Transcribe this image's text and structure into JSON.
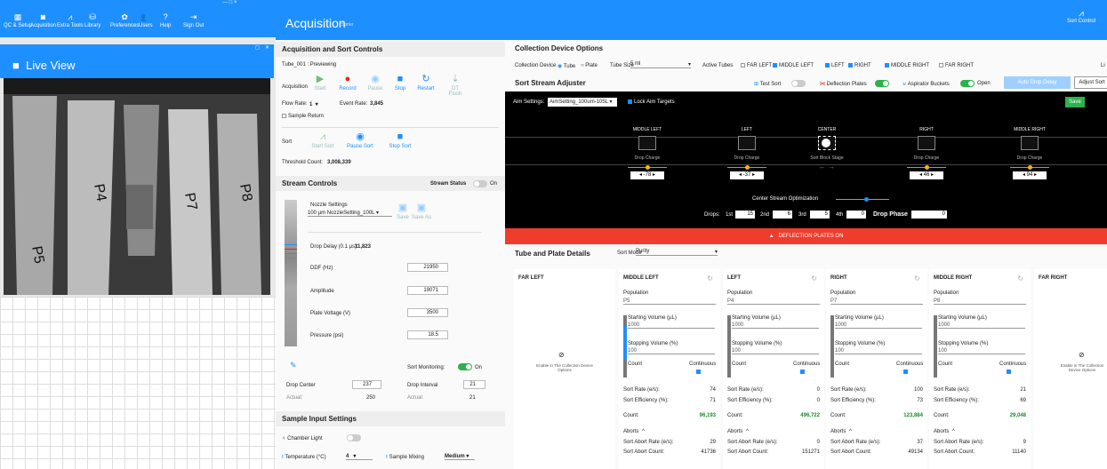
{
  "nav": {
    "items": [
      {
        "label": "QC & Setup",
        "icon": "qc-setup-icon",
        "glyph": "▦"
      },
      {
        "label": "Acquisition",
        "icon": "acquisition-icon",
        "glyph": "◙"
      },
      {
        "label": "Extra Tools",
        "icon": "extra-tools-icon",
        "glyph": "⩘"
      },
      {
        "label": "Library",
        "icon": "library-icon",
        "glyph": "⛁"
      },
      {
        "label": "Preferences",
        "icon": "preferences-icon",
        "glyph": "✿"
      },
      {
        "label": "Users",
        "icon": "users-icon",
        "glyph": "👥"
      },
      {
        "label": "Help",
        "icon": "help-icon",
        "glyph": "?"
      },
      {
        "label": "Sign Out",
        "icon": "sign-out-icon",
        "glyph": "⇥"
      }
    ],
    "window_controls": "—   □   ×"
  },
  "live_view": {
    "title": "Live View",
    "labels": [
      "P5",
      "P4",
      "P7",
      "P8"
    ]
  },
  "header": {
    "title": "Acquisition",
    "subtitle": "Sorter",
    "sort_control": "Sort Control"
  },
  "acq_sort": {
    "section": "Acquisition and Sort Controls",
    "tube_status": "Tube_001 : Previewing",
    "acquisition_label": "Acquisition",
    "buttons": [
      "Start",
      "Record",
      "Pause",
      "Stop",
      "Restart",
      "DT Flush"
    ],
    "flow_rate_label": "Flow Rate:",
    "flow_rate": "1",
    "event_rate_label": "Event Rate:",
    "event_rate": "3,845",
    "sample_return": "Sample Return",
    "sort_label": "Sort",
    "sort_buttons": [
      "Start Sort",
      "Pause Sort",
      "Stop Sort"
    ],
    "threshold_label": "Threshold Count:",
    "threshold": "3,008,339"
  },
  "stream": {
    "section": "Stream Controls",
    "status_label": "Stream Status",
    "status": "On",
    "nozzle_label": "Nozzle Settings",
    "nozzle_value": "100 µm NozzleSetting_100L",
    "save": "Save",
    "save_as": "Save As",
    "drop_delay_label": "Drop Delay (0.1 µs):",
    "drop_delay": "11,823",
    "fields": [
      {
        "label": "DDF (Hz)",
        "value": "21950"
      },
      {
        "label": "Amplitude",
        "value": "19071"
      },
      {
        "label": "Plate Voltage (V)",
        "value": "3500"
      },
      {
        "label": "Pressure (psi)",
        "value": "18.5"
      }
    ],
    "sort_monitoring": "Sort Monitoring:",
    "sort_monitoring_state": "On",
    "drop_center_label": "Drop Center",
    "drop_center": "237",
    "drop_interval_label": "Drop Interval",
    "drop_interval": "21",
    "actual_label": "Actual:",
    "actual_center": "250",
    "actual_interval": "21"
  },
  "sample_input": {
    "section": "Sample Input Settings",
    "chamber_light": "Chamber Light",
    "temperature_label": "Temperature (°C)",
    "temperature": "4",
    "sample_mixing_label": "Sample Mixing",
    "sample_mixing": "Medium"
  },
  "collection": {
    "section": "Collection Device Options",
    "device_label": "Collection Device",
    "tube": "Tube",
    "plate": "Plate",
    "tube_size_label": "Tube Size",
    "tube_size": "5 ml",
    "active_tubes_label": "Active Tubes",
    "tubes": [
      {
        "label": "FAR LEFT",
        "checked": false
      },
      {
        "label": "MIDDLE LEFT",
        "checked": true
      },
      {
        "label": "LEFT",
        "checked": true
      },
      {
        "label": "RIGHT",
        "checked": true
      },
      {
        "label": "MIDDLE RIGHT",
        "checked": true
      },
      {
        "label": "FAR RIGHT",
        "checked": false
      }
    ],
    "li": "Li"
  },
  "adjuster": {
    "section": "Sort Stream Adjuster",
    "test_sort": "Test Sort",
    "deflection_plates": "Deflection Plates",
    "aspirator": "Aspirator Buckets",
    "open": "Open",
    "auto_drop_delay": "Auto Drop Delay",
    "adjust_sort": "Adjust Sort",
    "aim_label": "Aim Settings:",
    "aim_value": "AimSetting_100um-105L",
    "lock_aim": "Lock Aim Targets",
    "save": "Save",
    "streams": [
      {
        "title": "MIDDLE LEFT",
        "sub": "Drop Charge",
        "value": "-78"
      },
      {
        "title": "LEFT",
        "sub": "Drop Charge",
        "value": "-37"
      },
      {
        "title": "CENTER",
        "sub": "Sort Block Stage",
        "value": ""
      },
      {
        "title": "RIGHT",
        "sub": "Drop Charge",
        "value": "46"
      },
      {
        "title": "MIDDLE RIGHT",
        "sub": "Drop Charge",
        "value": "94"
      }
    ],
    "cso": "Center Stream Optimization",
    "drops_label": "Drops:",
    "d1": "1st",
    "v1": "15",
    "d2": "2nd",
    "v2": "6",
    "d3": "3rd",
    "v3": "5",
    "d4": "4th",
    "v4": "0",
    "phase_label": "Drop Phase",
    "phase": "0",
    "warning": "DEFLECTION PLATES ON"
  },
  "details": {
    "section": "Tube and Plate Details",
    "sort_mode_label": "Sort Mode",
    "sort_mode": "Purity",
    "far_left": "FAR LEFT",
    "far_right": "FAR RIGHT",
    "enable_note": "Enable in The Collection Device Options",
    "population_label": "Population",
    "start_vol_label": "Starting Volume (µL)",
    "stop_vol_label": "Stopping Volume (%)",
    "count_label": "Count",
    "continuous_label": "Continuous",
    "sort_rate_label": "Sort Rate (e/s):",
    "sort_eff_label": "Sort Efficiency (%):",
    "count_total_label": "Count:",
    "aborts_label": "Aborts",
    "abort_rate_label": "Sort Abort Rate (e/s):",
    "abort_count_label": "Sort Abort Count:",
    "cards": [
      {
        "title": "MIDDLE LEFT",
        "population": "P5",
        "start_vol": "1000",
        "stop_vol": "100",
        "fill": 0.55,
        "sort_rate": "74",
        "sort_eff": "71",
        "count": "96,193",
        "abort_rate": "29",
        "abort_count": "41736"
      },
      {
        "title": "LEFT",
        "population": "P4",
        "start_vol": "1000",
        "stop_vol": "100",
        "fill": 0,
        "sort_rate": "0",
        "sort_eff": "0",
        "count": "496,722",
        "abort_rate": "0",
        "abort_count": "151271"
      },
      {
        "title": "RIGHT",
        "population": "P7",
        "start_vol": "1000",
        "stop_vol": "100",
        "fill": 0,
        "sort_rate": "100",
        "sort_eff": "73",
        "count": "123,884",
        "abort_rate": "37",
        "abort_count": "49134"
      },
      {
        "title": "MIDDLE RIGHT",
        "population": "P8",
        "start_vol": "1000",
        "stop_vol": "100",
        "fill": 0,
        "sort_rate": "21",
        "sort_eff": "69",
        "count": "29,048",
        "abort_rate": "9",
        "abort_count": "11140"
      }
    ]
  },
  "colors": {
    "accent": "#1e8fff",
    "warning": "#f03c2c",
    "on": "#2bb24c",
    "knob": "#f2b600"
  }
}
